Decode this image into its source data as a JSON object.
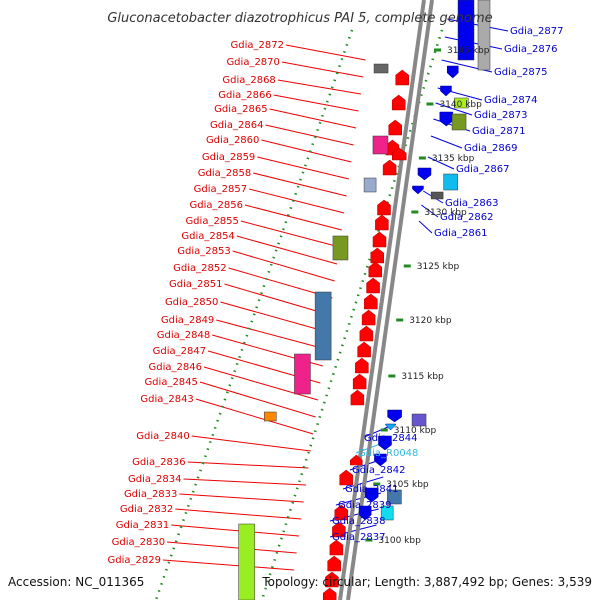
{
  "title": "Gluconacetobacter diazotrophicus PAI 5, complete genome",
  "footer": {
    "accession": "Accession: NC_011365",
    "summary": "Topology: circular; Length: 3,887,492 bp; Genes: 3,539"
  },
  "colors": {
    "forward_label": "#dd0000",
    "reverse_label": "#0000cc",
    "rna_label": "#33bbdd",
    "connector_forward": "#ee0000",
    "connector_reverse": "#0000dd",
    "tick": "#228b22",
    "backbone": "#888888"
  },
  "kbp_ticks": [
    {
      "label": "3100 kbp"
    },
    {
      "label": "3105 kbp"
    },
    {
      "label": "3110 kbp"
    },
    {
      "label": "3115 kbp"
    },
    {
      "label": "3120 kbp"
    },
    {
      "label": "3125 kbp"
    },
    {
      "label": "3130 kbp"
    },
    {
      "label": "3135 kbp"
    },
    {
      "label": "3140 kbp"
    },
    {
      "label": "3145 kbp"
    }
  ],
  "forward_genes": [
    {
      "label": "Gdia_2872"
    },
    {
      "label": "Gdia_2870"
    },
    {
      "label": "Gdia_2868"
    },
    {
      "label": "Gdia_2866"
    },
    {
      "label": "Gdia_2865"
    },
    {
      "label": "Gdia_2864"
    },
    {
      "label": "Gdia_2860"
    },
    {
      "label": "Gdia_2859"
    },
    {
      "label": "Gdia_2858"
    },
    {
      "label": "Gdia_2857"
    },
    {
      "label": "Gdia_2856"
    },
    {
      "label": "Gdia_2855"
    },
    {
      "label": "Gdia_2854"
    },
    {
      "label": "Gdia_2853"
    },
    {
      "label": "Gdia_2852"
    },
    {
      "label": "Gdia_2851"
    },
    {
      "label": "Gdia_2850"
    },
    {
      "label": "Gdia_2849"
    },
    {
      "label": "Gdia_2848"
    },
    {
      "label": "Gdia_2847"
    },
    {
      "label": "Gdia_2846"
    },
    {
      "label": "Gdia_2845"
    },
    {
      "label": "Gdia_2843"
    },
    {
      "label": "Gdia_2840"
    },
    {
      "label": "Gdia_2836"
    },
    {
      "label": "Gdia_2834"
    },
    {
      "label": "Gdia_2833"
    },
    {
      "label": "Gdia_2832"
    },
    {
      "label": "Gdia_2831"
    },
    {
      "label": "Gdia_2830"
    },
    {
      "label": "Gdia_2829"
    }
  ],
  "reverse_genes": [
    {
      "label": "Gdia_2877"
    },
    {
      "label": "Gdia_2876"
    },
    {
      "label": "Gdia_2875"
    },
    {
      "label": "Gdia_2874"
    },
    {
      "label": "Gdia_2873"
    },
    {
      "label": "Gdia_2871"
    },
    {
      "label": "Gdia_2869"
    },
    {
      "label": "Gdia_2867"
    },
    {
      "label": "Gdia_2863"
    },
    {
      "label": "Gdia_2862"
    },
    {
      "label": "Gdia_2861"
    },
    {
      "label": "Gdia_2844"
    },
    {
      "label": "Gdia_R0048"
    },
    {
      "label": "Gdia_2842"
    },
    {
      "label": "Gdia_2841"
    },
    {
      "label": "Gdia_2839"
    },
    {
      "label": "Gdia_2838"
    },
    {
      "label": "Gdia_2837"
    }
  ]
}
